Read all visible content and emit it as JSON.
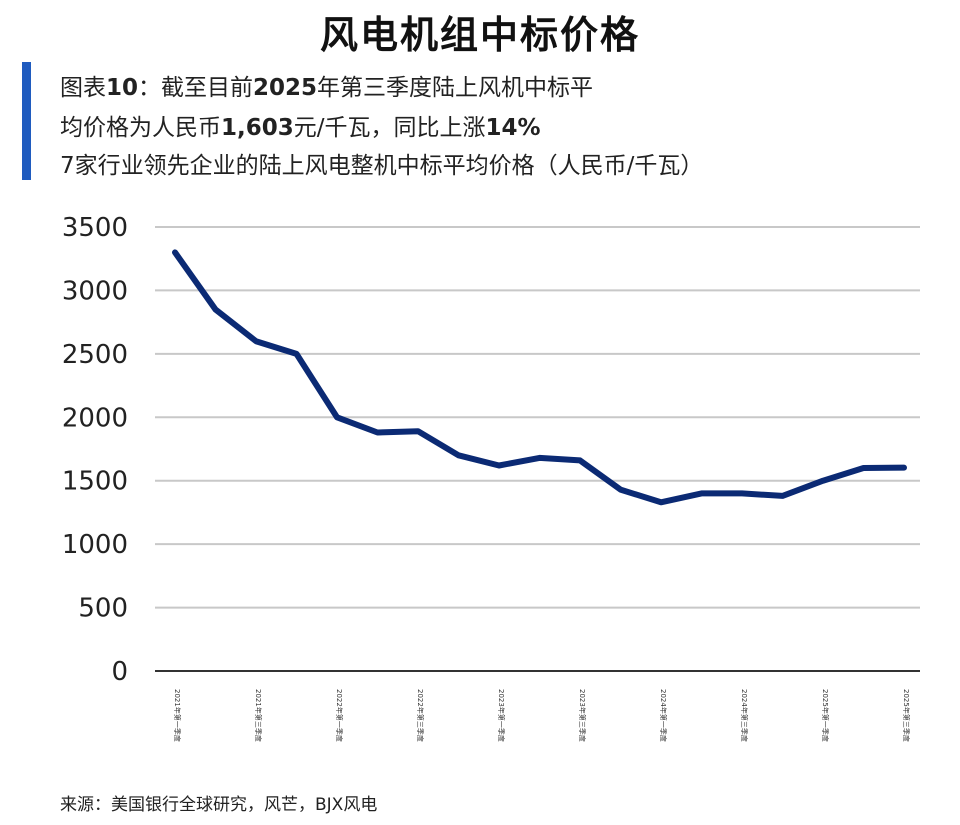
{
  "title": "风电机组中标价格",
  "subtitle": {
    "line1_a": "图表",
    "line1_num": "10",
    "line1_b": "：截至目前",
    "line1_year": "2025",
    "line1_c": "年第三季度陆上风机中标平",
    "line2_a": "均价格为人民币",
    "line2_price": "1,603",
    "line2_b": "元/千瓦，同比上涨",
    "line2_pct": "14%",
    "line3": "7家行业领先企业的陆上风电整机中标平均价格（人民币/千瓦）"
  },
  "source": "来源：美国银行全球研究，风芒，BJX风电",
  "colors": {
    "line": "#0b2a74",
    "grid": "#c8c8c8",
    "axis": "#333333",
    "accent": "#1f5bbf"
  },
  "chart_data": {
    "type": "line",
    "title": "",
    "xlabel": "",
    "ylabel": "",
    "ylim": [
      0,
      3500
    ],
    "yticks": [
      0,
      500,
      1000,
      1500,
      2000,
      2500,
      3000,
      3500
    ],
    "grid": true,
    "x_tick_labels": [
      "2021年第一季度",
      "2021年第三季度",
      "2022年第一季度",
      "2022年第三季度",
      "2023年第一季度",
      "2023年第三季度",
      "2024年第一季度",
      "2024年第三季度",
      "2025年第一季度",
      "2025年第三季度"
    ],
    "series": [
      {
        "values": [
          3300,
          2850,
          2600,
          2500,
          2000,
          1880,
          1890,
          1700,
          1620,
          1680,
          1660,
          1430,
          1330,
          1400,
          1400,
          1380,
          1500,
          1600,
          1603
        ]
      }
    ]
  }
}
